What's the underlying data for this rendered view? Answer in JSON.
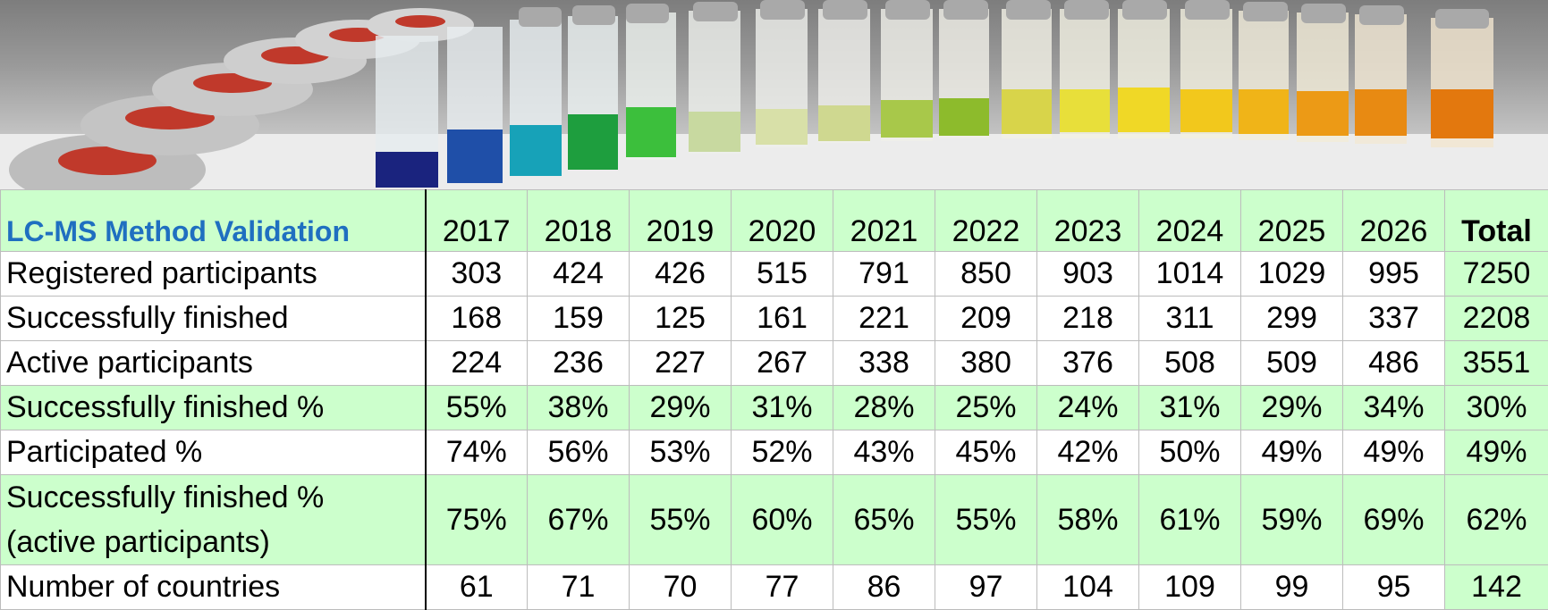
{
  "table": {
    "title": "LC-MS Method Validation",
    "years": [
      "2017",
      "2018",
      "2019",
      "2020",
      "2021",
      "2022",
      "2023",
      "2024",
      "2025",
      "2026"
    ],
    "total_label": "Total",
    "rows": [
      {
        "label": "Registered participants",
        "values": [
          "303",
          "424",
          "426",
          "515",
          "791",
          "850",
          "903",
          "1014",
          "1029",
          "995"
        ],
        "total": "7250"
      },
      {
        "label": "Successfully finished",
        "values": [
          "168",
          "159",
          "125",
          "161",
          "221",
          "209",
          "218",
          "311",
          "299",
          "337"
        ],
        "total": "2208"
      },
      {
        "label": "Active participants",
        "values": [
          "224",
          "236",
          "227",
          "267",
          "338",
          "380",
          "376",
          "508",
          "509",
          "486"
        ],
        "total": "3551"
      },
      {
        "label": "Successfully finished %",
        "values": [
          "55%",
          "38%",
          "29%",
          "31%",
          "28%",
          "25%",
          "24%",
          "31%",
          "29%",
          "34%"
        ],
        "total": "30%"
      },
      {
        "label": "Participated %",
        "values": [
          "74%",
          "56%",
          "53%",
          "52%",
          "43%",
          "45%",
          "42%",
          "50%",
          "49%",
          "49%"
        ],
        "total": "49%"
      },
      {
        "label_line1": "Successfully finished %",
        "label_line2": "(active participants)",
        "values": [
          "75%",
          "67%",
          "55%",
          "60%",
          "65%",
          "55%",
          "58%",
          "61%",
          "59%",
          "69%"
        ],
        "total": "62%"
      },
      {
        "label": "Number of countries",
        "values": [
          "61",
          "71",
          "70",
          "77",
          "86",
          "97",
          "104",
          "109",
          "99",
          "95"
        ],
        "total": "142"
      }
    ]
  },
  "colors": {
    "title_blue": "#1f6fc0",
    "highlight_green": "#ccffcc"
  }
}
